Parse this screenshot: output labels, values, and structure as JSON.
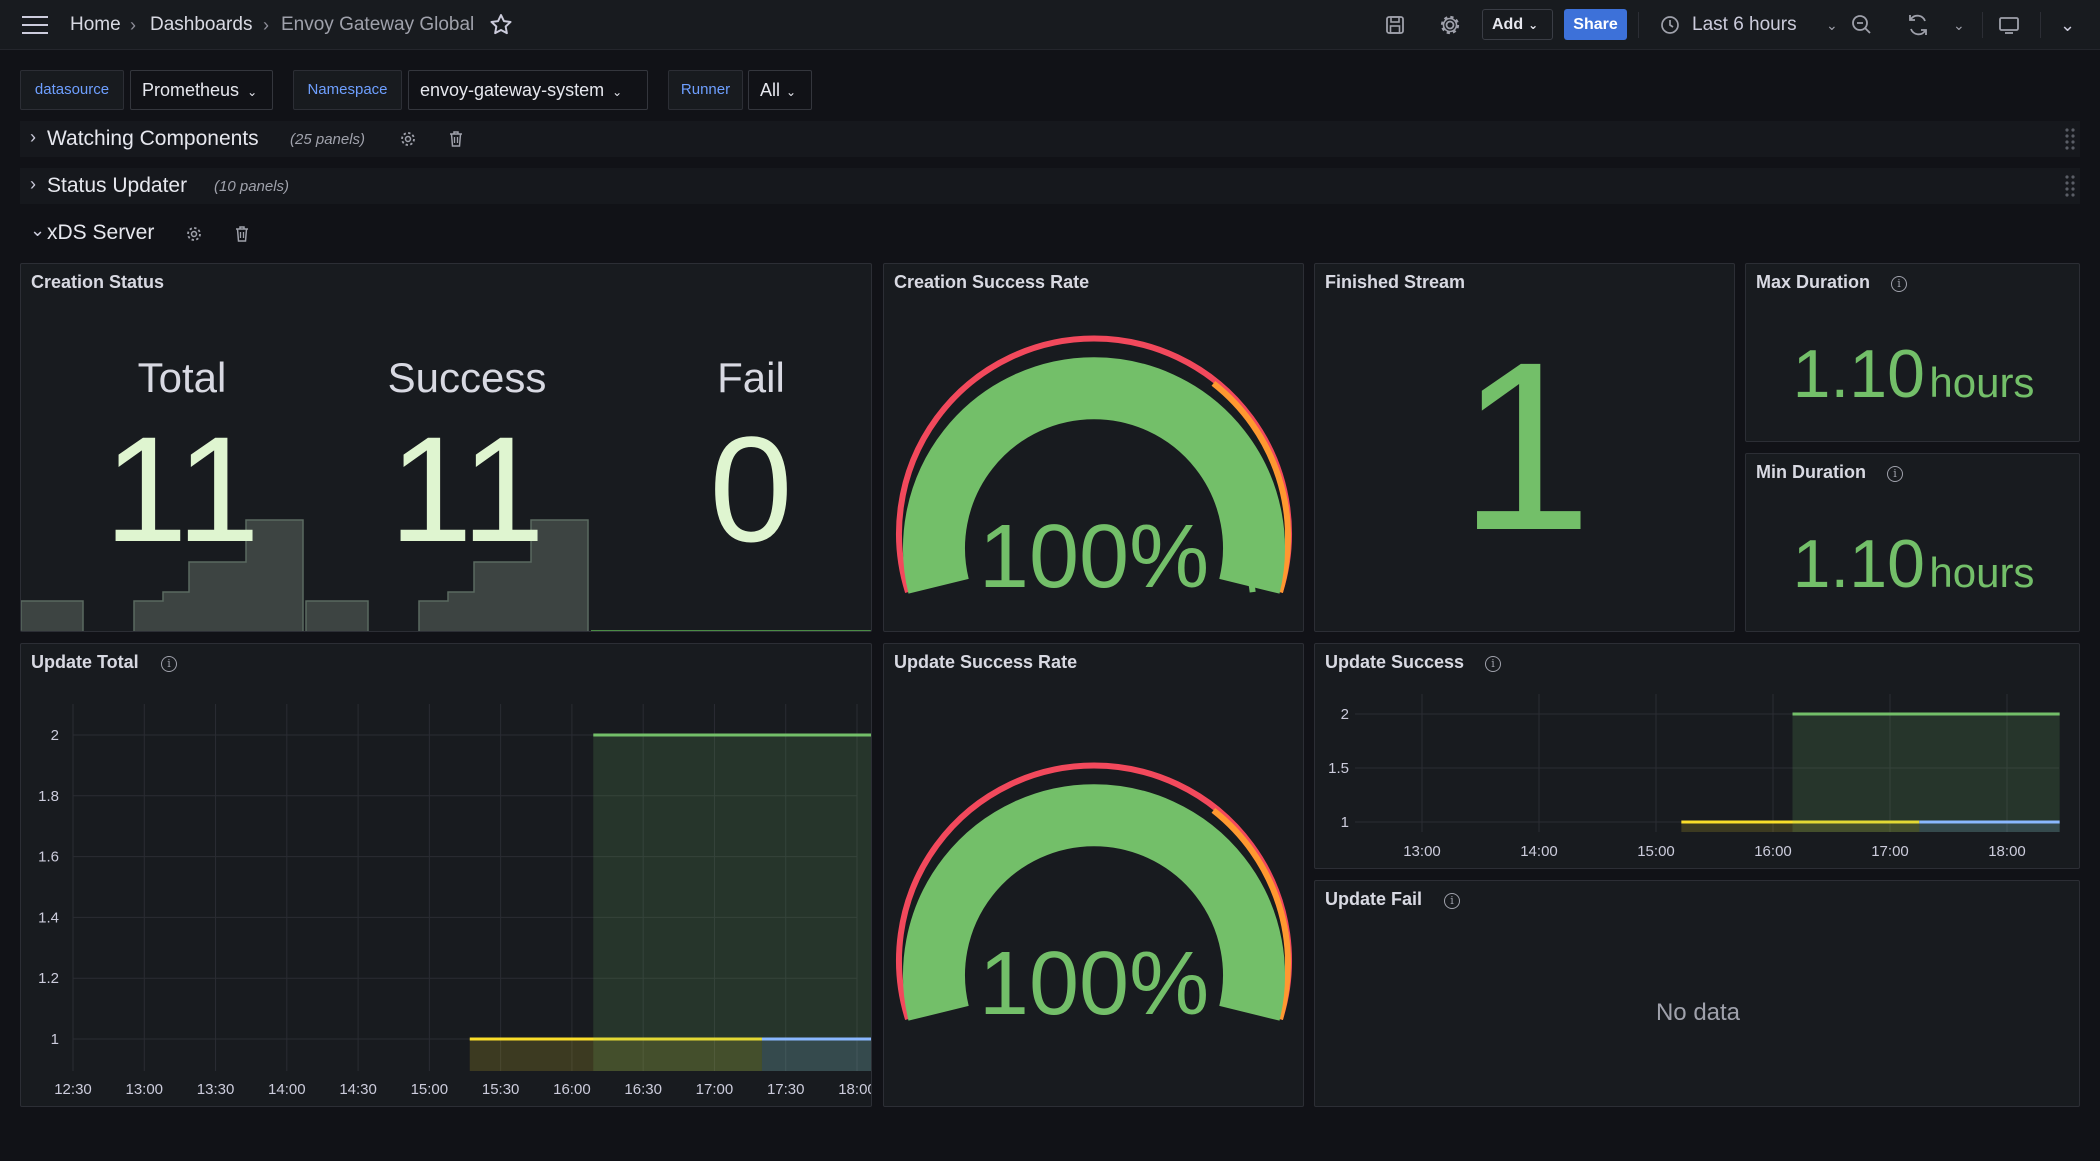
{
  "topbar": {
    "breadcrumb": [
      "Home",
      "Dashboards",
      "Envoy Gateway Global"
    ],
    "add_label": "Add",
    "share_label": "Share",
    "time_range": "Last 6 hours"
  },
  "variables": [
    {
      "label": "datasource",
      "value": "Prometheus"
    },
    {
      "label": "Namespace",
      "value": "envoy-gateway-system"
    },
    {
      "label": "Runner",
      "value": "All"
    }
  ],
  "rows": [
    {
      "title": "Watching Components",
      "count": "(25 panels)",
      "collapsed": true
    },
    {
      "title": "Status Updater",
      "count": "(10 panels)",
      "collapsed": true
    },
    {
      "title": "xDS Server",
      "collapsed": false
    }
  ],
  "panels": {
    "creation_status": {
      "title": "Creation Status",
      "stats": [
        {
          "label": "Total",
          "value": "11"
        },
        {
          "label": "Success",
          "value": "11"
        },
        {
          "label": "Fail",
          "value": "0"
        }
      ]
    },
    "creation_success_rate": {
      "title": "Creation Success Rate",
      "value": "100%"
    },
    "finished_stream": {
      "title": "Finished Stream",
      "value": "1"
    },
    "max_duration": {
      "title": "Max Duration",
      "value": "1.10",
      "unit": "hours"
    },
    "min_duration": {
      "title": "Min Duration",
      "value": "1.10",
      "unit": "hours"
    },
    "update_total": {
      "title": "Update Total"
    },
    "update_success_rate": {
      "title": "Update Success Rate",
      "value": "100%"
    },
    "update_success": {
      "title": "Update Success"
    },
    "update_fail": {
      "title": "Update Fail",
      "no_data": "No data"
    }
  },
  "colors": {
    "green": "#73bf69",
    "yellow": "#fade2a",
    "blue": "#8ab8ff",
    "red": "#f2495c",
    "orange": "#ff9830",
    "accent": "#3d71d9"
  },
  "chart_data": [
    {
      "type": "area",
      "title": "Update Total",
      "x": [
        "12:30",
        "13:00",
        "13:30",
        "14:00",
        "14:30",
        "15:00",
        "15:30",
        "16:00",
        "16:30",
        "17:00",
        "17:30",
        "18:00"
      ],
      "y_ticks": [
        "1",
        "1.2",
        "1.4",
        "1.6",
        "1.8",
        "2"
      ],
      "ylim": [
        1,
        2
      ],
      "series": [
        {
          "color": "#fade2a",
          "points": [
            [
              "15:17",
              1
            ],
            [
              "17:20",
              1
            ]
          ]
        },
        {
          "color": "#73bf69",
          "points": [
            [
              "16:09",
              2
            ],
            [
              "18:25",
              2
            ]
          ]
        },
        {
          "color": "#8ab8ff",
          "points": [
            [
              "17:20",
              1
            ],
            [
              "18:25",
              1
            ]
          ]
        }
      ]
    },
    {
      "type": "area",
      "title": "Update Success",
      "x": [
        "13:00",
        "14:00",
        "15:00",
        "16:00",
        "17:00",
        "18:00"
      ],
      "y_ticks": [
        "1",
        "1.5",
        "2"
      ],
      "ylim": [
        1,
        2
      ],
      "series": [
        {
          "color": "#fade2a",
          "points": [
            [
              "15:13",
              1
            ],
            [
              "17:15",
              1
            ]
          ]
        },
        {
          "color": "#73bf69",
          "points": [
            [
              "16:10",
              2
            ],
            [
              "18:27",
              2
            ]
          ]
        },
        {
          "color": "#8ab8ff",
          "points": [
            [
              "17:15",
              1
            ],
            [
              "18:27",
              1
            ]
          ]
        }
      ]
    }
  ]
}
